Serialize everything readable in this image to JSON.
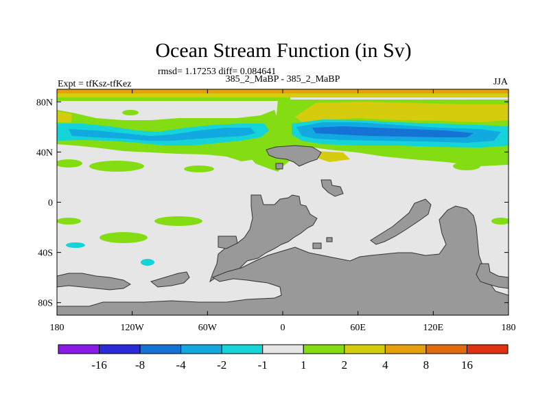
{
  "chart_data": {
    "type": "heatmap",
    "title": "Ocean Stream Function (in Sv)",
    "subtitle": "rmsd= 1.17253 diff= 0.084641",
    "left_label": "Expt = tfKsz-tfKez",
    "center_label": "385_2_MaBP - 385_2_MaBP",
    "right_label": "JJA",
    "x_ticks": [
      "180",
      "120W",
      "60W",
      "0",
      "60E",
      "120E",
      "180"
    ],
    "y_ticks": [
      "80N",
      "40N",
      "0",
      "40S",
      "80S"
    ],
    "xlim": [
      -180,
      180
    ],
    "ylim": [
      -90,
      90
    ],
    "colorbar": {
      "boundaries": [
        "-16",
        "-8",
        "-4",
        "-2",
        "-1",
        "1",
        "2",
        "4",
        "8",
        "16"
      ],
      "colors": [
        "#8a1ae6",
        "#2a2ad8",
        "#1673d6",
        "#12a8e0",
        "#14d4d8",
        "#e6e6e6",
        "#84dd12",
        "#d4cc0c",
        "#e6a00c",
        "#e26a0e",
        "#e03210"
      ]
    },
    "colors": {
      "land": "#999999",
      "background_field": "#e6e6e6"
    }
  }
}
